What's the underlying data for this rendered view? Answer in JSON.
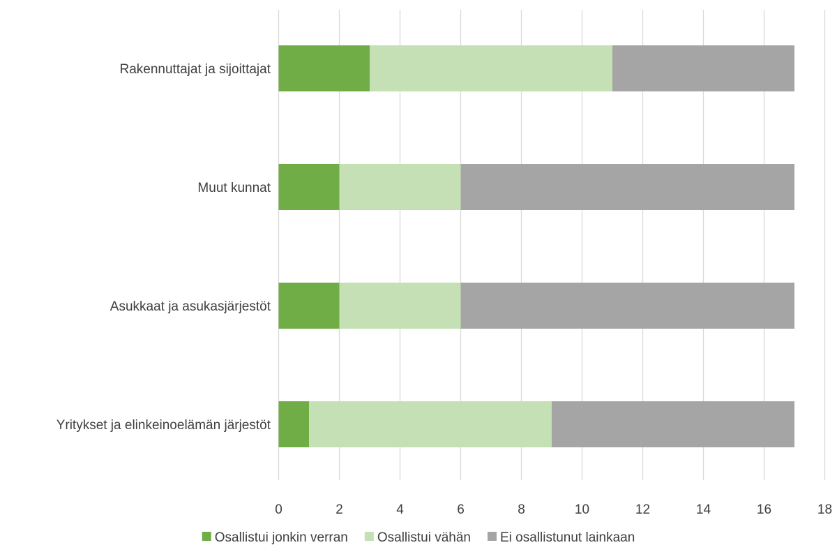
{
  "chart_data": {
    "type": "bar",
    "orientation": "horizontal",
    "stacked": true,
    "title": "",
    "xlabel": "",
    "ylabel": "",
    "categories": [
      "Rakennuttajat ja sijoittajat",
      "Muut kunnat",
      "Asukkaat ja asukasjärjestöt",
      "Yritykset ja elinkeinoelämän järjestöt"
    ],
    "series": [
      {
        "name": "Osallistui jonkin verran",
        "color": "#70ad47",
        "values": [
          3,
          2,
          2,
          1
        ]
      },
      {
        "name": "Osallistui vähän",
        "color": "#c5e0b4",
        "values": [
          8,
          4,
          4,
          8
        ]
      },
      {
        "name": "Ei osallistunut lainkaan",
        "color": "#a5a5a5",
        "values": [
          6,
          11,
          11,
          8
        ]
      }
    ],
    "xlim": [
      0,
      18
    ],
    "xticks": [
      "0",
      "2",
      "4",
      "6",
      "8",
      "10",
      "12",
      "14",
      "16",
      "18"
    ],
    "grid": true,
    "legend_position": "bottom"
  }
}
